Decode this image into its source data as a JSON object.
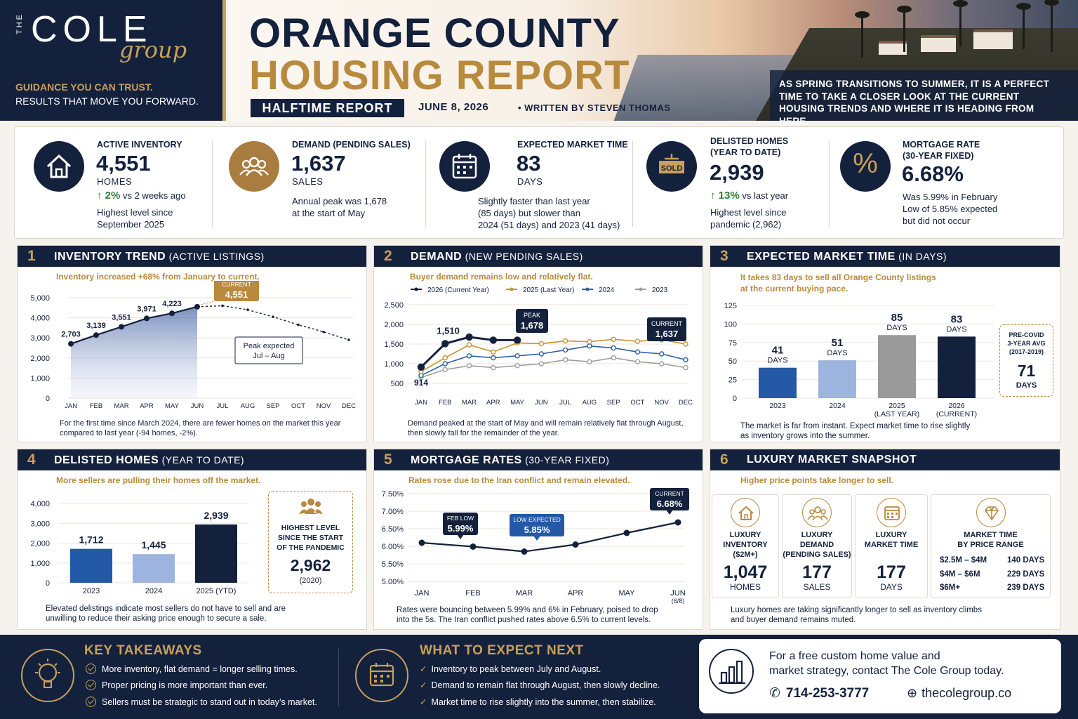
{
  "brand": {
    "the": "THE",
    "name": "COLE",
    "script": "group",
    "tagline1": "GUIDANCE YOU CAN TRUST.",
    "tagline2": "RESULTS THAT MOVE YOU FORWARD."
  },
  "header": {
    "title_line1": "ORANGE COUNTY",
    "title_line2": "HOUSING REPORT",
    "badge": "HALFTIME REPORT",
    "date": "JUNE 8, 2026",
    "byline": "• WRITTEN BY STEVEN THOMAS",
    "intro": "AS SPRING TRANSITIONS TO SUMMER, IT IS A PERFECT TIME TO TAKE A CLOSER LOOK AT THE CURRENT HOUSING TRENDS AND WHERE IT IS HEADING FROM HERE."
  },
  "stats": [
    {
      "icon": "house-icon",
      "label": "ACTIVE INVENTORY",
      "value": "4,551",
      "unit": "HOMES",
      "change": "2%",
      "change_text": " vs 2 weeks ago",
      "note": "Highest level since\nSeptember 2025"
    },
    {
      "icon": "people-icon",
      "label": "DEMAND (PENDING SALES)",
      "value": "1,637",
      "unit": "SALES",
      "note": "Annual peak was 1,678\nat the start of May"
    },
    {
      "icon": "calendar-icon",
      "label": "EXPECTED MARKET TIME",
      "value": "83",
      "unit": "DAYS",
      "note": "Slightly faster than last year\n(85 days) but slower than\n2024 (51 days) and 2023 (41 days)"
    },
    {
      "icon": "sold-sign-icon",
      "label": "DELISTED HOMES\n(YEAR TO DATE)",
      "value": "2,939",
      "sold": "SOLD",
      "change": "13%",
      "change_text": " vs last year",
      "note": "Highest level since\npandemic (2,962)"
    },
    {
      "icon": "percent-icon",
      "label": "MORTGAGE RATE\n(30-YEAR FIXED)",
      "value": "6.68%",
      "symbol": "%",
      "note": "Was 5.99% in February\nLow of 5.85% expected\nbut did not occur"
    }
  ],
  "panels": {
    "p1": {
      "num": "1",
      "title": "INVENTORY TREND",
      "sub": " (ACTIVE LISTINGS)",
      "subtitle": "Inventory increased +68% from January to current.",
      "footer": "For the first time since March 2024, there are fewer homes on the market this year compared to last year (-94 homes, -2%).",
      "callout_label": "CURRENT",
      "callout_value": "4,551",
      "note": "Peak expected\nJul – Aug"
    },
    "p2": {
      "num": "2",
      "title": "DEMAND",
      "sub": " (NEW PENDING SALES)",
      "subtitle": "Buyer demand remains low and relatively flat.",
      "footer": "Demand peaked at the start of May and will remain relatively flat through August, then slowly fall for the remainder of the year.",
      "peak_label": "PEAK",
      "peak_value": "1,678",
      "current_label": "CURRENT",
      "current_value": "1,637",
      "start_label": "914",
      "jan_label": "1,510"
    },
    "p3": {
      "num": "3",
      "title": "EXPECTED MARKET TIME",
      "sub": " (IN DAYS)",
      "subtitle": "It takes 83 days to sell all Orange County listings\nat the current buying pace.",
      "footer": "The market is far from instant. Expect market time to rise slightly\nas inventory grows into the summer.",
      "precovid_label": "PRE-COVID\n3-YEAR AVG\n(2017-2019)",
      "precovid_value": "71",
      "precovid_unit": "DAYS"
    },
    "p4": {
      "num": "4",
      "title": "DELISTED HOMES",
      "sub": " (YEAR TO DATE)",
      "subtitle": "More sellers are pulling their homes off the market.",
      "footer": "Elevated delistings indicate most sellers do not have to sell and are\nunwilling to reduce their asking price enough to secure a sale.",
      "callout_label": "HIGHEST LEVEL\nSINCE THE START\nOF THE PANDEMIC",
      "callout_value": "2,962",
      "callout_year": "(2020)"
    },
    "p5": {
      "num": "5",
      "title": "MORTGAGE RATES",
      "sub": " (30-YEAR FIXED)",
      "subtitle": "Rates rose due to the Iran conflict and remain elevated.",
      "footer": "Rates were bouncing between 5.99% and 6% in February, poised to drop\ninto the 5s. The Iran conflict pushed rates above 6.5% to current levels.",
      "feb_label": "FEB LOW",
      "feb_value": "5.99%",
      "low_label": "LOW EXPECTED",
      "low_value": "5.85%",
      "cur_label": "CURRENT",
      "cur_value": "6.68%"
    },
    "p6": {
      "num": "6",
      "title": "LUXURY MARKET SNAPSHOT",
      "sub": "",
      "subtitle": "Higher price points take longer to sell.",
      "footer": "Luxury homes are taking significantly longer to sell as inventory climbs\nand buyer demand remains muted."
    }
  },
  "luxury": {
    "cards": [
      {
        "icon": "house-icon",
        "label": "LUXURY\nINVENTORY\n($2M+)",
        "value": "1,047",
        "unit": "HOMES"
      },
      {
        "icon": "people-icon",
        "label": "LUXURY\nDEMAND\n(PENDING SALES)",
        "value": "177",
        "unit": "SALES"
      },
      {
        "icon": "calendar-icon",
        "label": "LUXURY\nMARKET TIME",
        "value": "177",
        "unit": "DAYS"
      }
    ],
    "price_title": "MARKET TIME\nBY PRICE RANGE",
    "price_ranges": [
      {
        "range": "$2.5M – $4M",
        "days": "140 DAYS"
      },
      {
        "range": "$4M – $6M",
        "days": "229 DAYS"
      },
      {
        "range": "$6M+",
        "days": "239 DAYS"
      }
    ]
  },
  "chart_data": [
    {
      "type": "area",
      "title": "INVENTORY TREND (ACTIVE LISTINGS)",
      "categories": [
        "JAN",
        "FEB",
        "MAR",
        "APR",
        "MAY",
        "JUN",
        "JUL",
        "AUG",
        "SEP",
        "OCT",
        "NOV",
        "DEC"
      ],
      "series": [
        {
          "name": "",
          "values": [
            2703,
            3139,
            3551,
            3971,
            4223,
            4551,
            null,
            null,
            null,
            null,
            null,
            null
          ],
          "labels": [
            "2,703",
            "3,139",
            "3,551",
            "3,971",
            "4,223",
            "",
            null,
            null,
            null,
            null,
            null,
            null
          ]
        },
        {
          "name": "",
          "values": [
            null,
            null,
            null,
            null,
            null,
            4551,
            4600,
            4400,
            4050,
            3650,
            3300,
            2900
          ]
        }
      ],
      "yticks": [
        "0",
        "1,000",
        "2,000",
        "3,000",
        "4,000",
        "5,000"
      ],
      "ylim": [
        0,
        5000
      ]
    },
    {
      "type": "line",
      "title": "DEMAND (NEW PENDING SALES)",
      "categories": [
        "JAN",
        "FEB",
        "MAR",
        "APR",
        "MAY",
        "JUN",
        "JUL",
        "AUG",
        "SEP",
        "OCT",
        "NOV",
        "DEC"
      ],
      "series": [
        {
          "name": "2026 (Current Year)",
          "color": "#14213d",
          "values": [
            914,
            1510,
            1678,
            1600,
            1600,
            null,
            null,
            null,
            null,
            null,
            null,
            null
          ]
        },
        {
          "name": "2025 (Last Year)",
          "color": "#c9922e",
          "values": [
            800,
            1150,
            1480,
            1300,
            1530,
            1510,
            1580,
            1560,
            1620,
            1570,
            1610,
            1500
          ]
        },
        {
          "name": "2024",
          "color": "#2d5fa8",
          "values": [
            700,
            1000,
            1200,
            1150,
            1200,
            1250,
            1350,
            1450,
            1400,
            1300,
            1250,
            1100
          ]
        },
        {
          "name": "2023",
          "color": "#9e9e9e",
          "values": [
            650,
            850,
            950,
            900,
            950,
            1000,
            1100,
            1050,
            1150,
            1050,
            1000,
            900
          ]
        }
      ],
      "yticks": [
        "500",
        "1,000",
        "1,500",
        "2,000",
        "2,500"
      ],
      "ylim": [
        500,
        2500
      ]
    },
    {
      "type": "bar",
      "title": "EXPECTED MARKET TIME (IN DAYS)",
      "categories": [
        "2023",
        "2024",
        "2025\n(LAST YEAR)",
        "2026\n(CURRENT)"
      ],
      "values": [
        41,
        51,
        85,
        83
      ],
      "labels": [
        "41",
        "51",
        "85",
        "83"
      ],
      "unit": "DAYS",
      "yticks": [
        "0",
        "25",
        "50",
        "75",
        "100",
        "125"
      ],
      "ylim": [
        0,
        125
      ]
    },
    {
      "type": "bar",
      "title": "DELISTED HOMES (YEAR TO DATE)",
      "categories": [
        "2023",
        "2024",
        "2025 (YTD)"
      ],
      "values": [
        1712,
        1445,
        2939
      ],
      "labels": [
        "1,712",
        "1,445",
        "2,939"
      ],
      "yticks": [
        "0",
        "1,000",
        "2,000",
        "3,000",
        "4,000"
      ],
      "ylim": [
        0,
        4000
      ]
    },
    {
      "type": "line",
      "title": "MORTGAGE RATES (30-YEAR FIXED)",
      "categories": [
        "JAN",
        "FEB",
        "MAR",
        "APR",
        "MAY",
        "JUN"
      ],
      "sublabel": "(6/8)",
      "series": [
        {
          "name": "",
          "values": [
            6.1,
            5.99,
            5.85,
            6.05,
            6.38,
            6.68
          ]
        }
      ],
      "yticks": [
        "5.00%",
        "5.50%",
        "6.00%",
        "6.50%",
        "7.00%",
        "7.50%"
      ],
      "ylim": [
        5.0,
        7.5
      ]
    }
  ],
  "colors": {
    "navy": "#14213d",
    "gold": "#b88a3e",
    "blue": "#2359a6",
    "lightblue": "#9db4de",
    "grey": "#9a9a9a"
  },
  "footer": {
    "key_title": "KEY TAKEAWAYS",
    "key_items": [
      "More inventory, flat demand = longer selling times.",
      "Proper pricing is more important than ever.",
      "Sellers must be strategic to stand out in today’s market."
    ],
    "next_title": "WHAT TO EXPECT NEXT",
    "next_items": [
      "Inventory to peak between July and August.",
      "Demand to remain flat through August, then slowly decline.",
      "Market time to rise slightly into the summer, then stabilize."
    ],
    "cta_text": "For a free custom home value and\nmarket strategy, contact The Cole Group today.",
    "phone": "714-253-3777",
    "website": "thecolegroup.co"
  }
}
